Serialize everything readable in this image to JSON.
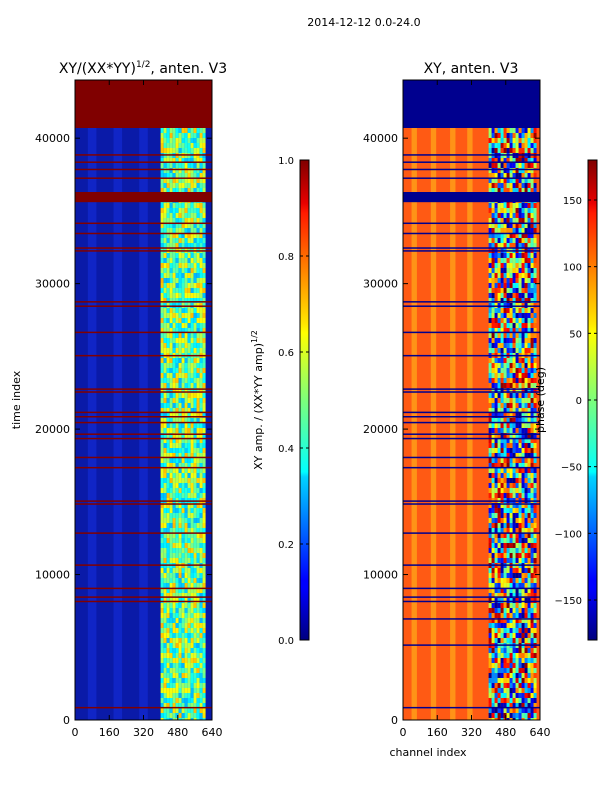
{
  "suptitle": "2014-12-12 0.0-24.0",
  "chart_data": [
    {
      "type": "heatmap",
      "title": "XY/(XX*YY)",
      "title_exponent": "1/2",
      "title_suffix": ", anten. V3",
      "xlabel": "",
      "ylabel": "time index",
      "xlim": [
        0,
        640
      ],
      "ylim": [
        0,
        44000
      ],
      "xticks": [
        0,
        160,
        320,
        480,
        640
      ],
      "yticks": [
        0,
        10000,
        20000,
        30000,
        40000
      ],
      "background": "#0a1aa8",
      "flagged_color": "#800000",
      "flagged_time_ranges": [
        [
          40700,
          44000
        ],
        [
          36300,
          35600
        ]
      ],
      "flagged_lines": [
        900,
        8200,
        8500,
        9100,
        10700,
        12900,
        14900,
        15100,
        17400,
        18100,
        19400,
        19700,
        20500,
        20900,
        21200,
        22600,
        22800,
        25100,
        26700,
        28500,
        28800,
        32300,
        32500,
        33500,
        34200,
        37300,
        37900,
        38400,
        38900
      ],
      "bright_channel_range": [
        400,
        600
      ],
      "colorbar": {
        "label": "XY amp. / (XX*YY amp)",
        "label_exponent": "1/2",
        "min": 0.0,
        "max": 1.0,
        "ticks": [
          "0.0",
          "0.2",
          "0.4",
          "0.6",
          "0.8",
          "1.0"
        ]
      }
    },
    {
      "type": "heatmap",
      "title": "XY, anten. V3",
      "xlabel": "channel index",
      "ylabel": "",
      "xlim": [
        0,
        640
      ],
      "ylim": [
        0,
        44000
      ],
      "xticks": [
        0,
        160,
        320,
        480,
        640
      ],
      "yticks": [
        0,
        10000,
        20000,
        30000,
        40000
      ],
      "background": "#ff5a14",
      "flagged_color": "#00008f",
      "flagged_time_ranges": [
        [
          40700,
          44000
        ],
        [
          36300,
          35600
        ]
      ],
      "flagged_lines": [
        900,
        5200,
        7000,
        8200,
        8500,
        9100,
        10700,
        12900,
        14900,
        15100,
        17400,
        18100,
        19400,
        19700,
        20500,
        20900,
        21200,
        22600,
        22800,
        25100,
        26700,
        28500,
        28800,
        32300,
        32500,
        33500,
        34200,
        37300,
        37900,
        38400,
        38900
      ],
      "noisy_channel_range": [
        400,
        620
      ],
      "colorbar": {
        "label": "phase (deg)",
        "min": -180,
        "max": 180,
        "ticks": [
          "−150",
          "−100",
          "−50",
          "0",
          "50",
          "100",
          "150"
        ],
        "tick_values": [
          -150,
          -100,
          -50,
          0,
          50,
          100,
          150
        ]
      }
    }
  ]
}
